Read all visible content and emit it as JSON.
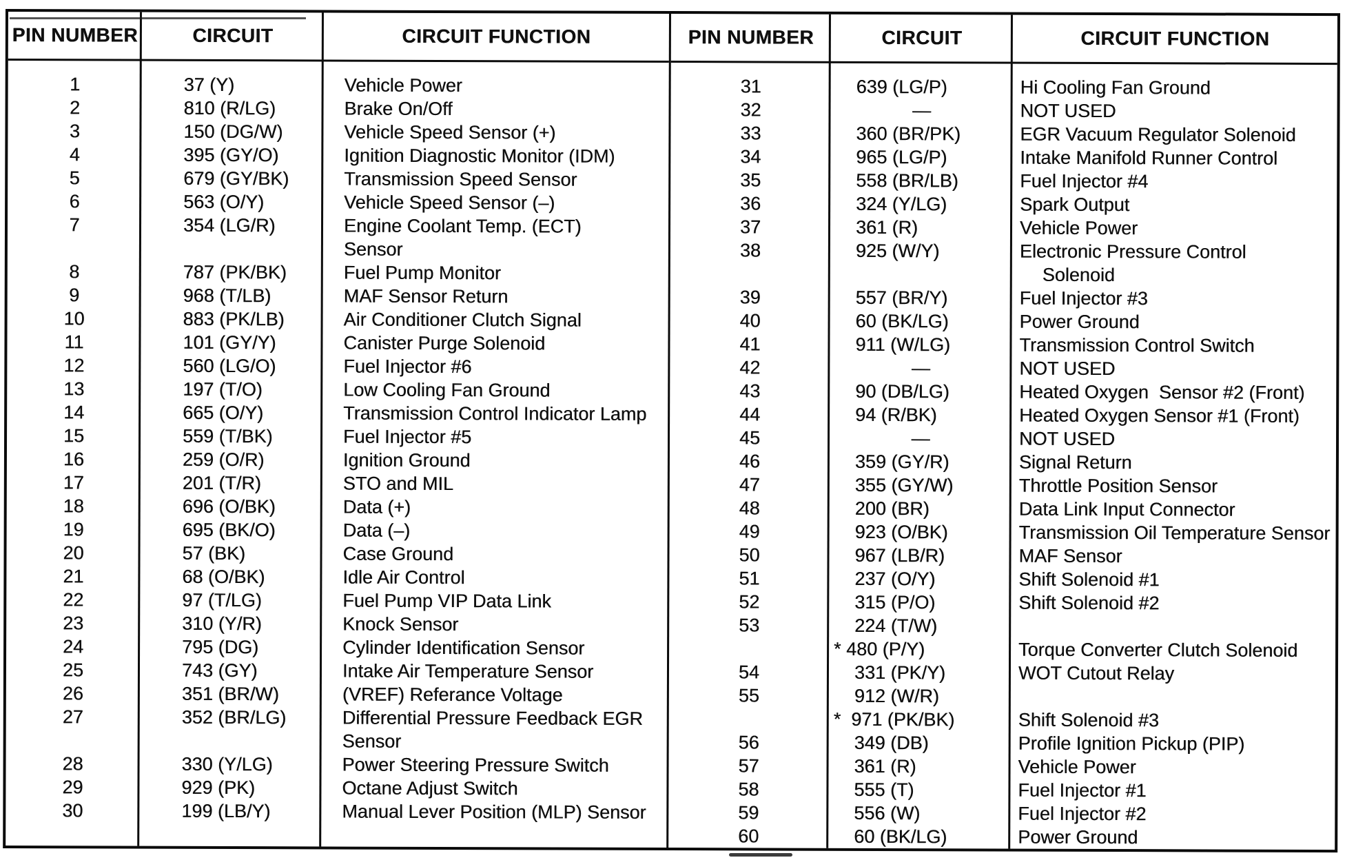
{
  "page": {
    "paper_color": "#ffffff",
    "ink_color": "#101010"
  },
  "tables": {
    "left": {
      "headers": [
        "PIN NUMBER",
        "CIRCUIT",
        "CIRCUIT FUNCTION"
      ],
      "rows": [
        {
          "pin": "1",
          "circuit": "37 (Y)",
          "fn": "Vehicle Power"
        },
        {
          "pin": "2",
          "circuit": "810 (R/LG)",
          "fn": "Brake On/Off"
        },
        {
          "pin": "3",
          "circuit": "150 (DG/W)",
          "fn": "Vehicle Speed Sensor (+)"
        },
        {
          "pin": "4",
          "circuit": "395 (GY/O)",
          "fn": "Ignition Diagnostic Monitor (IDM)"
        },
        {
          "pin": "5",
          "circuit": "679 (GY/BK)",
          "fn": "Transmission Speed Sensor"
        },
        {
          "pin": "6",
          "circuit": "563 (O/Y)",
          "fn": "Vehicle Speed Sensor (–)"
        },
        {
          "pin": "7",
          "circuit": "354 (LG/R)",
          "fn": "Engine Coolant Temp. (ECT)"
        },
        {
          "pin": "",
          "circuit": "",
          "fn": "Sensor"
        },
        {
          "pin": "8",
          "circuit": "787 (PK/BK)",
          "fn": "Fuel Pump Monitor"
        },
        {
          "pin": "9",
          "circuit": "968 (T/LB)",
          "fn": "MAF Sensor Return"
        },
        {
          "pin": "10",
          "circuit": "883 (PK/LB)",
          "fn": "Air Conditioner Clutch Signal"
        },
        {
          "pin": "11",
          "circuit": "101 (GY/Y)",
          "fn": "Canister Purge Solenoid"
        },
        {
          "pin": "12",
          "circuit": "560 (LG/O)",
          "fn": "Fuel Injector #6"
        },
        {
          "pin": "13",
          "circuit": "197 (T/O)",
          "fn": "Low Cooling Fan Ground"
        },
        {
          "pin": "14",
          "circuit": "665 (O/Y)",
          "fn": "Transmission Control Indicator Lamp"
        },
        {
          "pin": "15",
          "circuit": "559 (T/BK)",
          "fn": "Fuel Injector #5"
        },
        {
          "pin": "16",
          "circuit": "259 (O/R)",
          "fn": "Ignition Ground"
        },
        {
          "pin": "17",
          "circuit": "201 (T/R)",
          "fn": "STO and MIL"
        },
        {
          "pin": "18",
          "circuit": "696 (O/BK)",
          "fn": "Data (+)"
        },
        {
          "pin": "19",
          "circuit": "695 (BK/O)",
          "fn": "Data (–)"
        },
        {
          "pin": "20",
          "circuit": "57 (BK)",
          "fn": "Case Ground"
        },
        {
          "pin": "21",
          "circuit": "68 (O/BK)",
          "fn": "Idle Air Control"
        },
        {
          "pin": "22",
          "circuit": "97 (T/LG)",
          "fn": "Fuel Pump VIP Data Link"
        },
        {
          "pin": "23",
          "circuit": "310 (Y/R)",
          "fn": "Knock Sensor"
        },
        {
          "pin": "24",
          "circuit": "795 (DG)",
          "fn": "Cylinder Identification Sensor"
        },
        {
          "pin": "25",
          "circuit": "743 (GY)",
          "fn": "Intake Air Temperature Sensor"
        },
        {
          "pin": "26",
          "circuit": "351 (BR/W)",
          "fn": "(VREF) Referance Voltage"
        },
        {
          "pin": "27",
          "circuit": "352 (BR/LG)",
          "fn": "Differential Pressure Feedback EGR"
        },
        {
          "pin": "",
          "circuit": "",
          "fn": "Sensor"
        },
        {
          "pin": "28",
          "circuit": "330 (Y/LG)",
          "fn": "Power Steering Pressure Switch"
        },
        {
          "pin": "29",
          "circuit": "929 (PK)",
          "fn": "Octane Adjust Switch"
        },
        {
          "pin": "30",
          "circuit": "199 (LB/Y)",
          "fn": "Manual Lever Position (MLP) Sensor"
        }
      ]
    },
    "right": {
      "headers": [
        "PIN NUMBER",
        "CIRCUIT",
        "CIRCUIT FUNCTION"
      ],
      "rows": [
        {
          "pin": "31",
          "circuit": "639 (LG/P)",
          "fn": "Hi Cooling Fan Ground"
        },
        {
          "pin": "32",
          "circuit": "—",
          "fn": "NOT USED",
          "style": "dash"
        },
        {
          "pin": "33",
          "circuit": "360 (BR/PK)",
          "fn": "EGR Vacuum Regulator Solenoid"
        },
        {
          "pin": "34",
          "circuit": "965 (LG/P)",
          "fn": "Intake Manifold Runner Control"
        },
        {
          "pin": "35",
          "circuit": "558 (BR/LB)",
          "fn": "Fuel Injector #4"
        },
        {
          "pin": "36",
          "circuit": "324 (Y/LG)",
          "fn": "Spark Output"
        },
        {
          "pin": "37",
          "circuit": "361 (R)",
          "fn": "Vehicle Power"
        },
        {
          "pin": "38",
          "circuit": "925 (W/Y)",
          "fn": "Electronic Pressure Control"
        },
        {
          "pin": "",
          "circuit": "",
          "fn": "Solenoid",
          "style": "indent"
        },
        {
          "pin": "39",
          "circuit": "557 (BR/Y)",
          "fn": "Fuel Injector #3"
        },
        {
          "pin": "40",
          "circuit": "60 (BK/LG)",
          "fn": "Power Ground"
        },
        {
          "pin": "41",
          "circuit": "911 (W/LG)",
          "fn": "Transmission Control Switch"
        },
        {
          "pin": "42",
          "circuit": "—",
          "fn": "NOT USED",
          "style": "dash"
        },
        {
          "pin": "43",
          "circuit": "90 (DB/LG)",
          "fn": "Heated Oxygen  Sensor #2 (Front)"
        },
        {
          "pin": "44",
          "circuit": "94 (R/BK)",
          "fn": "Heated Oxygen Sensor #1 (Front)"
        },
        {
          "pin": "45",
          "circuit": "—",
          "fn": "NOT USED",
          "style": "dash"
        },
        {
          "pin": "46",
          "circuit": "359 (GY/R)",
          "fn": "Signal Return"
        },
        {
          "pin": "47",
          "circuit": "355 (GY/W)",
          "fn": "Throttle Position Sensor"
        },
        {
          "pin": "48",
          "circuit": "200 (BR)",
          "fn": "Data Link Input Connector"
        },
        {
          "pin": "49",
          "circuit": "923 (O/BK)",
          "fn": "Transmission Oil Temperature Sensor"
        },
        {
          "pin": "50",
          "circuit": "967 (LB/R)",
          "fn": "MAF Sensor"
        },
        {
          "pin": "51",
          "circuit": "237 (O/Y)",
          "fn": "Shift Solenoid #1"
        },
        {
          "pin": "52",
          "circuit": "315 (P/O)",
          "fn": "Shift Solenoid #2"
        },
        {
          "pin": "53",
          "circuit": "224 (T/W)",
          "fn": ""
        },
        {
          "pin": "",
          "circuit": "* 480 (P/Y)",
          "fn": "Torque Converter Clutch Solenoid",
          "style": "star"
        },
        {
          "pin": "54",
          "circuit": "331 (PK/Y)",
          "fn": "WOT Cutout Relay"
        },
        {
          "pin": "55",
          "circuit": "912 (W/R)",
          "fn": ""
        },
        {
          "pin": "",
          "circuit": "*  971 (PK/BK)",
          "fn": "Shift Solenoid #3",
          "style": "star"
        },
        {
          "pin": "56",
          "circuit": "349 (DB)",
          "fn": "Profile Ignition Pickup (PIP)"
        },
        {
          "pin": "57",
          "circuit": "361 (R)",
          "fn": "Vehicle Power"
        },
        {
          "pin": "58",
          "circuit": "555 (T)",
          "fn": "Fuel Injector #1"
        },
        {
          "pin": "59",
          "circuit": "556 (W)",
          "fn": "Fuel Injector #2"
        },
        {
          "pin": "60",
          "circuit": "60 (BK/LG)",
          "fn": "Power Ground"
        }
      ]
    }
  }
}
